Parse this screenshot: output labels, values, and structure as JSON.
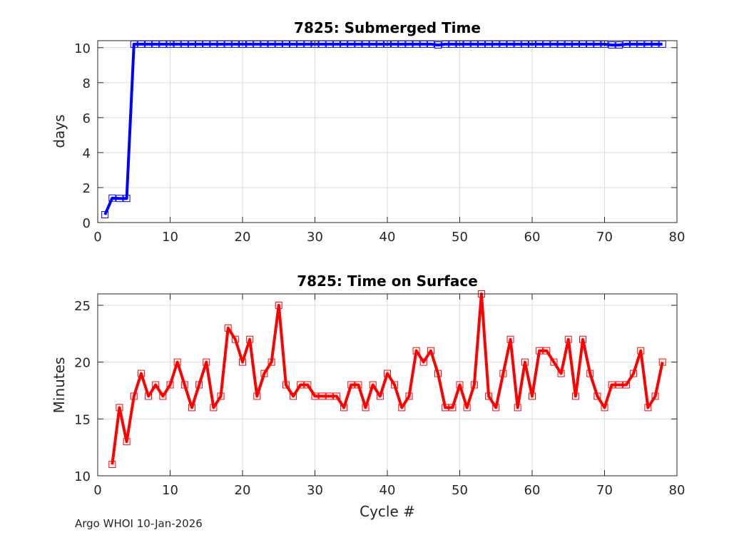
{
  "chart_data": [
    {
      "type": "line",
      "title": "7825: Submerged Time",
      "xlabel": "",
      "ylabel": "days",
      "xlim": [
        0,
        80
      ],
      "ylim": [
        0,
        10.4
      ],
      "xticks": [
        0,
        10,
        20,
        30,
        40,
        50,
        60,
        70,
        80
      ],
      "yticks": [
        0,
        2,
        4,
        6,
        8,
        10
      ],
      "grid": true,
      "series": [
        {
          "name": "Submerged Time",
          "color": "#0000ff",
          "marker": "square",
          "x": [
            1,
            2,
            3,
            4,
            5,
            6,
            7,
            8,
            9,
            10,
            11,
            12,
            13,
            14,
            15,
            16,
            17,
            18,
            19,
            20,
            21,
            22,
            23,
            24,
            25,
            26,
            27,
            28,
            29,
            30,
            31,
            32,
            33,
            34,
            35,
            36,
            37,
            38,
            39,
            40,
            41,
            42,
            43,
            44,
            45,
            46,
            47,
            48,
            49,
            50,
            51,
            52,
            53,
            54,
            55,
            56,
            57,
            58,
            59,
            60,
            61,
            62,
            63,
            64,
            65,
            66,
            67,
            68,
            69,
            70,
            71,
            72,
            73,
            74,
            75,
            76,
            77,
            78
          ],
          "y": [
            0.45,
            1.4,
            1.38,
            1.38,
            10.2,
            10.2,
            10.2,
            10.2,
            10.2,
            10.2,
            10.2,
            10.2,
            10.2,
            10.2,
            10.2,
            10.2,
            10.2,
            10.2,
            10.2,
            10.2,
            10.2,
            10.2,
            10.2,
            10.2,
            10.2,
            10.2,
            10.2,
            10.2,
            10.2,
            10.2,
            10.2,
            10.2,
            10.2,
            10.2,
            10.2,
            10.2,
            10.2,
            10.2,
            10.2,
            10.2,
            10.2,
            10.2,
            10.2,
            10.2,
            10.2,
            10.2,
            10.15,
            10.2,
            10.2,
            10.2,
            10.2,
            10.2,
            10.2,
            10.2,
            10.2,
            10.2,
            10.2,
            10.2,
            10.2,
            10.2,
            10.2,
            10.2,
            10.2,
            10.2,
            10.2,
            10.2,
            10.2,
            10.2,
            10.2,
            10.2,
            10.15,
            10.15,
            10.2,
            10.2,
            10.2,
            10.2,
            10.2,
            10.2
          ]
        }
      ]
    },
    {
      "type": "line",
      "title": "7825: Time on Surface",
      "xlabel": "Cycle #",
      "ylabel": "Minutes",
      "xlim": [
        0,
        80
      ],
      "ylim": [
        10,
        26
      ],
      "xticks": [
        0,
        10,
        20,
        30,
        40,
        50,
        60,
        70,
        80
      ],
      "yticks": [
        10,
        15,
        20,
        25
      ],
      "grid": true,
      "series": [
        {
          "name": "Time on Surface",
          "color": "#ff0000",
          "marker": "square",
          "x": [
            2,
            3,
            4,
            5,
            6,
            7,
            8,
            9,
            10,
            11,
            12,
            13,
            14,
            15,
            16,
            17,
            18,
            19,
            20,
            21,
            22,
            23,
            24,
            25,
            26,
            27,
            28,
            29,
            30,
            31,
            32,
            33,
            34,
            35,
            36,
            37,
            38,
            39,
            40,
            41,
            42,
            43,
            44,
            45,
            46,
            47,
            48,
            49,
            50,
            51,
            52,
            53,
            54,
            55,
            56,
            57,
            58,
            59,
            60,
            61,
            62,
            63,
            64,
            65,
            66,
            67,
            68,
            69,
            70,
            71,
            72,
            73,
            74,
            75,
            76,
            77,
            78
          ],
          "y": [
            11,
            16,
            13,
            17,
            19,
            17,
            18,
            17,
            18,
            20,
            18,
            16,
            18,
            20,
            16,
            17,
            23,
            22,
            20,
            22,
            17,
            19,
            20,
            25,
            18,
            17,
            18,
            18,
            17,
            17,
            17,
            17,
            16,
            18,
            18,
            16,
            18,
            17,
            19,
            18,
            16,
            17,
            21,
            20,
            21,
            19,
            16,
            16,
            18,
            16,
            18,
            26,
            17,
            16,
            19,
            22,
            16,
            20,
            17,
            21,
            21,
            20,
            19,
            22,
            17,
            22,
            19,
            17,
            16,
            18,
            18,
            18,
            19,
            21,
            16,
            17,
            20
          ]
        }
      ]
    }
  ],
  "footer": "Argo WHOI 10-Jan-2026"
}
